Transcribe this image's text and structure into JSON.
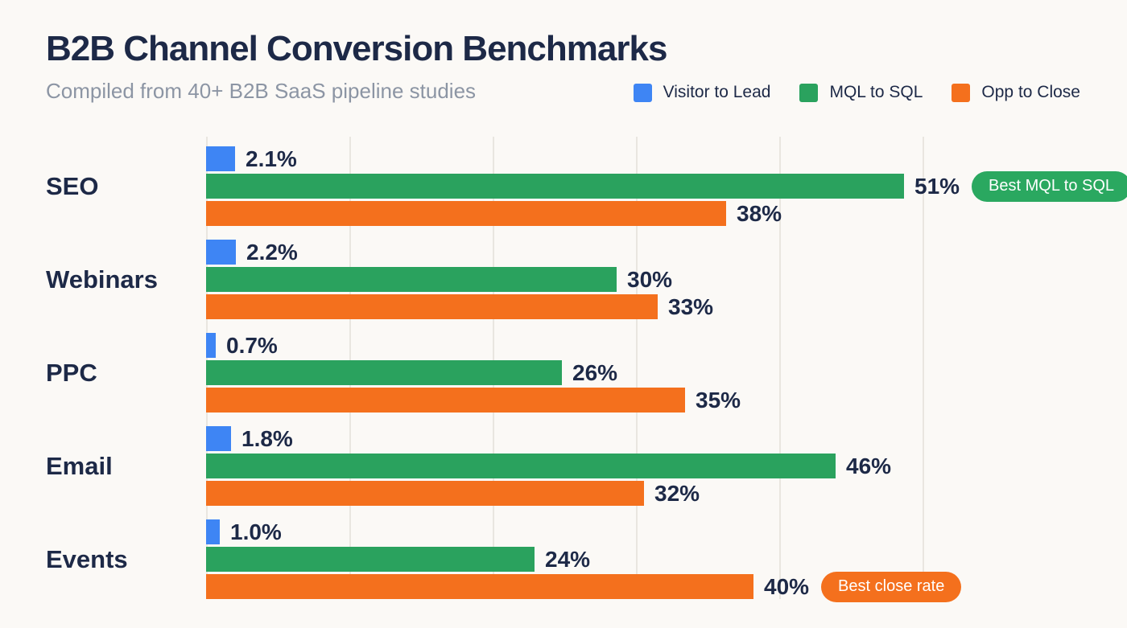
{
  "chart_data": {
    "type": "bar",
    "orientation": "horizontal",
    "title": "B2B Channel Conversion Benchmarks",
    "subtitle": "Compiled from 40+ B2B SaaS pipeline studies",
    "categories": [
      "SEO",
      "Webinars",
      "PPC",
      "Email",
      "Events"
    ],
    "series": [
      {
        "name": "Visitor to Lead",
        "color": "#3e85f4",
        "values": [
          2.1,
          2.2,
          0.7,
          1.8,
          1.0
        ],
        "labels": [
          "2.1%",
          "2.2%",
          "0.7%",
          "1.8%",
          "1.0%"
        ]
      },
      {
        "name": "MQL to SQL",
        "color": "#2aa25e",
        "values": [
          51,
          30,
          26,
          46,
          24
        ],
        "labels": [
          "51%",
          "30%",
          "26%",
          "46%",
          "24%"
        ]
      },
      {
        "name": "Opp to Close",
        "color": "#f4701d",
        "values": [
          38,
          33,
          35,
          32,
          40
        ],
        "labels": [
          "38%",
          "33%",
          "35%",
          "32%",
          "40%"
        ]
      }
    ],
    "annotations": [
      {
        "text": "Best MQL to SQL",
        "category": "SEO",
        "series": "MQL to SQL",
        "color": "#2aa860"
      },
      {
        "text": "Best close rate",
        "category": "Events",
        "series": "Opp to Close",
        "color": "#f4701d"
      }
    ],
    "xlim": [
      0,
      63
    ],
    "grid": true,
    "legend_position": "top-right",
    "text_color": "#1d2947",
    "background_color": "#fbf9f6"
  }
}
